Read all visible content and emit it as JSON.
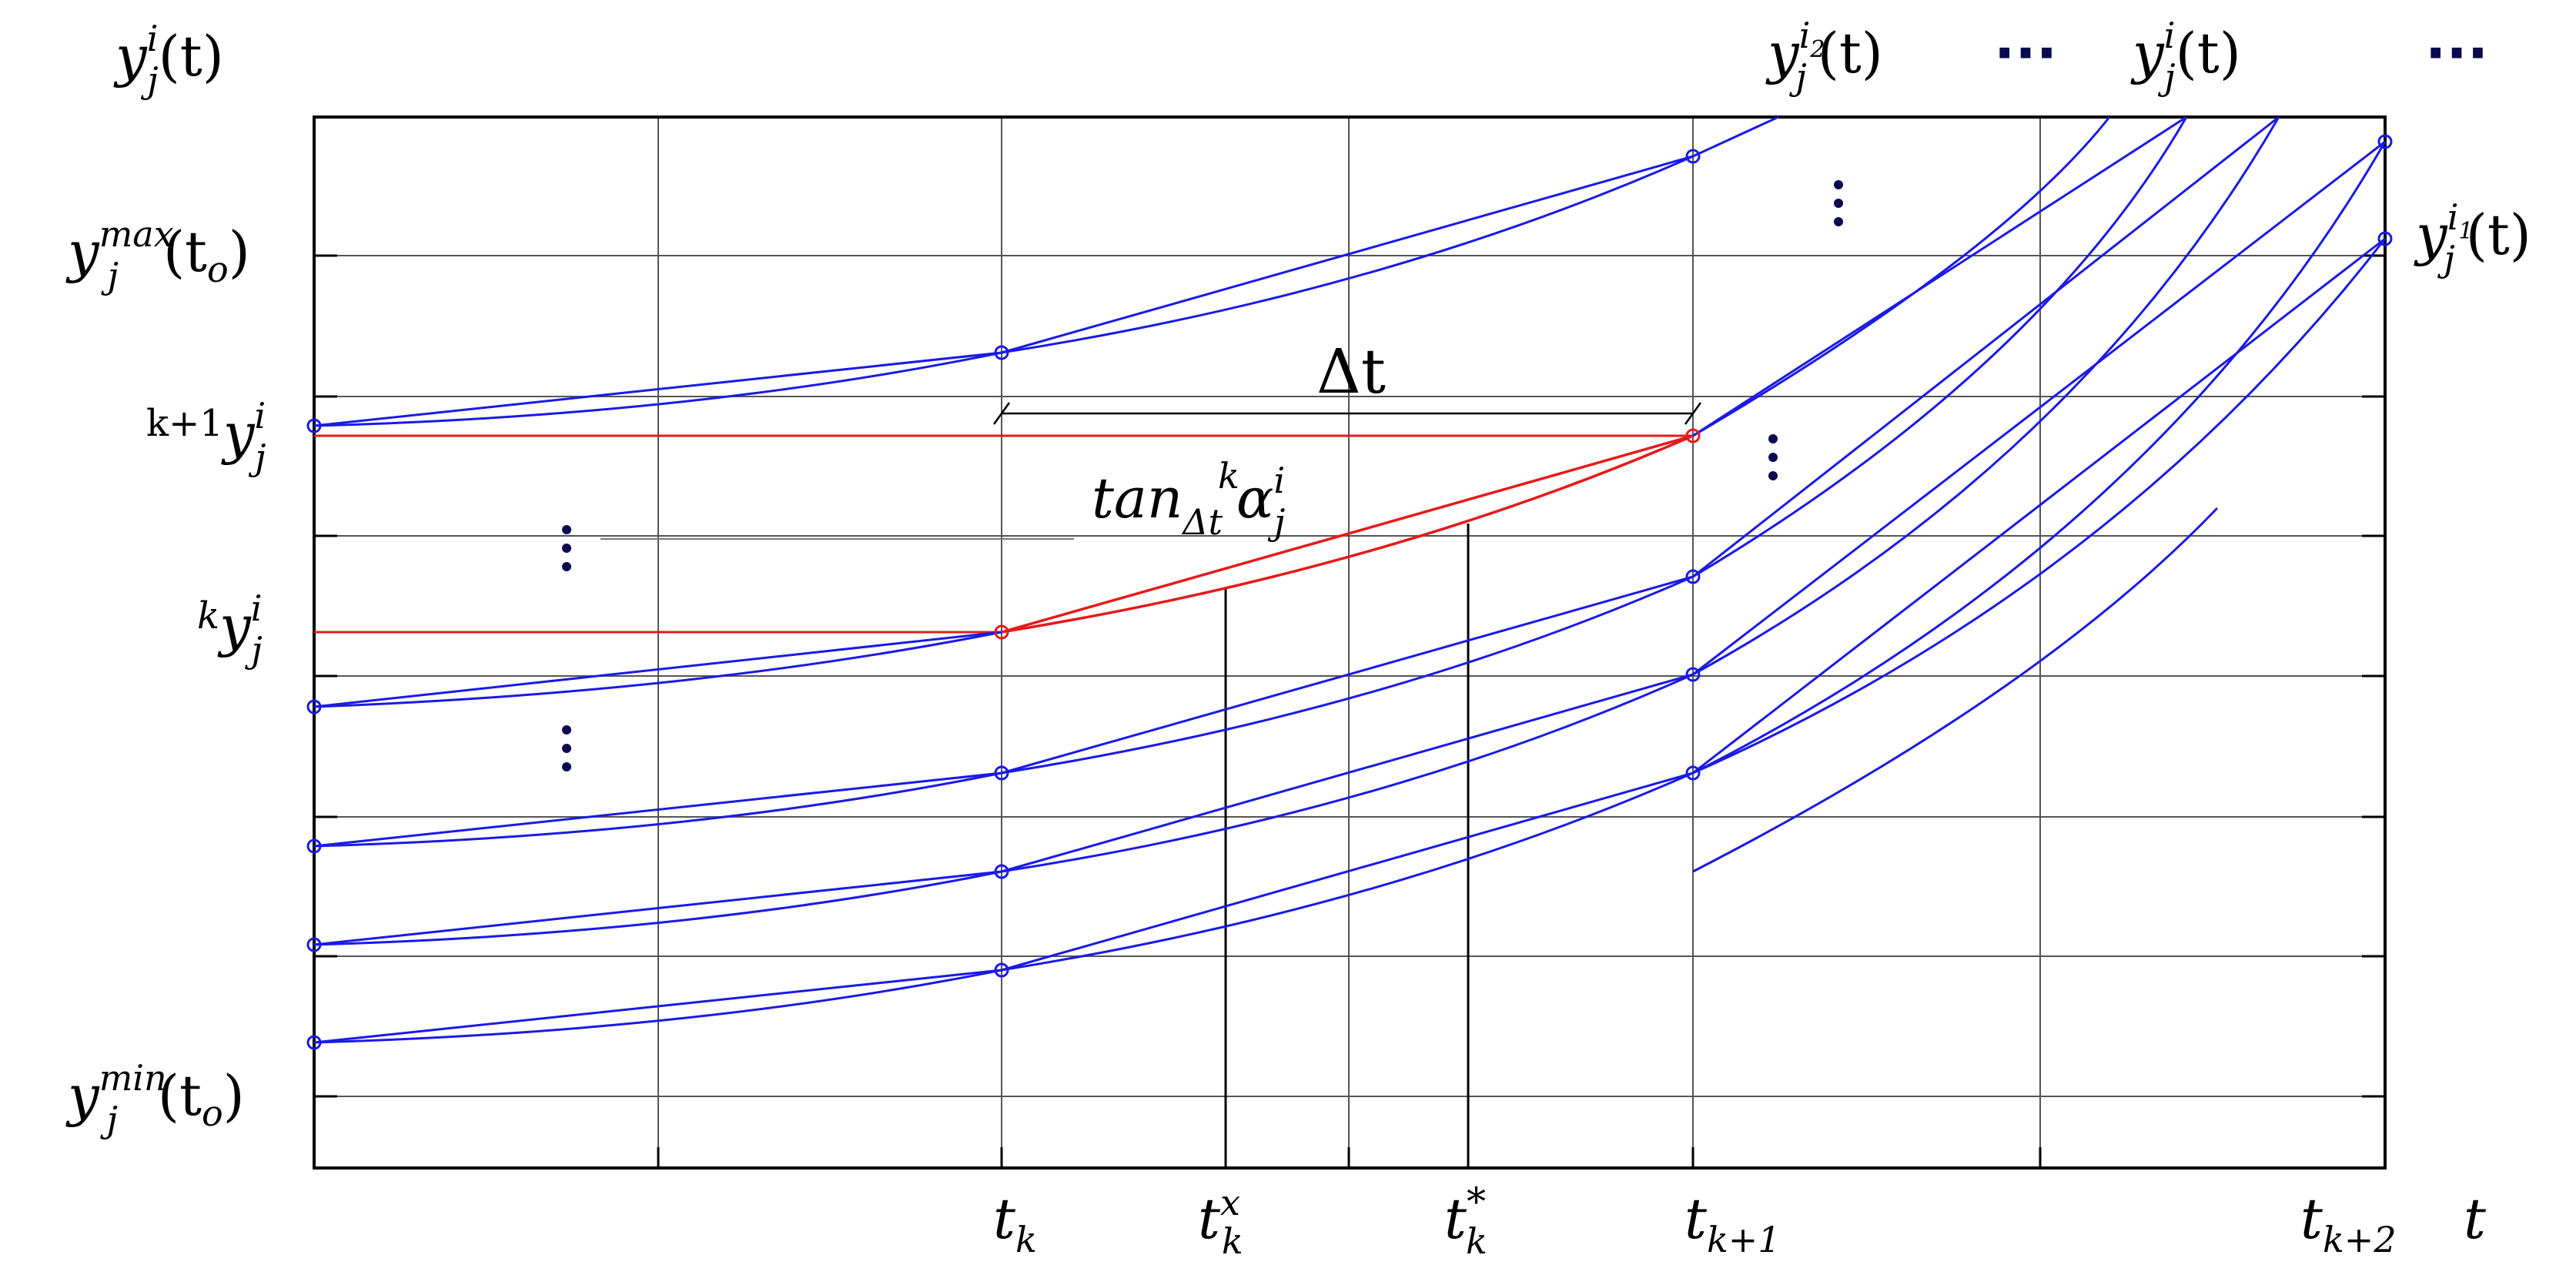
{
  "labels": {
    "y_axis_base": "y",
    "y_axis_sup": "i",
    "y_axis_sub": "j",
    "y_axis_arg": "(t)",
    "y_max_base": "y",
    "y_max_sup": "max",
    "y_max_sub": "j",
    "y_max_arg": "(t",
    "y_max_arg_sub": "o",
    "y_max_arg_close": ")",
    "y_min_base": "y",
    "y_min_sup": "min",
    "y_min_sub": "j",
    "y_min_arg": "(t",
    "y_min_arg_sub": "o",
    "y_min_arg_close": ")",
    "k1y_pre": "k+1",
    "k1y_base": "y",
    "k1y_sup": "i",
    "k1y_sub": "j",
    "ky_pre": "k",
    "ky_base": "y",
    "ky_sup": "i",
    "ky_sub": "j",
    "delta_t": "Δt",
    "tan_text": "tan",
    "tan_sub": "Δt",
    "tan_k": "k",
    "tan_alpha": "α",
    "tan_sup": "i",
    "tan_alpha_sub": "j",
    "t_k_base": "t",
    "t_k_sub": "k",
    "t_kx_base": "t",
    "t_kx_sup": "x",
    "t_kx_sub": "k",
    "t_kstar_base": "t",
    "t_kstar_sup": "*",
    "t_kstar_sub": "k",
    "t_k1_base": "t",
    "t_k1_sub": "k+1",
    "t_k2_base": "t",
    "t_k2_sub": "k+2",
    "t_axis": "t",
    "yi2_base": "y",
    "yi2_sup": "i",
    "yi2_sup_sub": "2",
    "yi2_sub": "j",
    "yi2_arg": "(t)",
    "yi_top_base": "y",
    "yi_top_sup": "i",
    "yi_top_sub": "j",
    "yi_top_arg": "(t)",
    "yi1_base": "y",
    "yi1_sup": "i",
    "yi1_sup_sub": "1",
    "yi1_sub": "j",
    "yi1_arg": "(t)",
    "ellipsis_h": "···"
  },
  "colors": {
    "curve": "#1a1ae6",
    "highlight": "#e61a1a",
    "grid": "#555555",
    "frame": "#000000",
    "dots": "#0a0a50"
  }
}
